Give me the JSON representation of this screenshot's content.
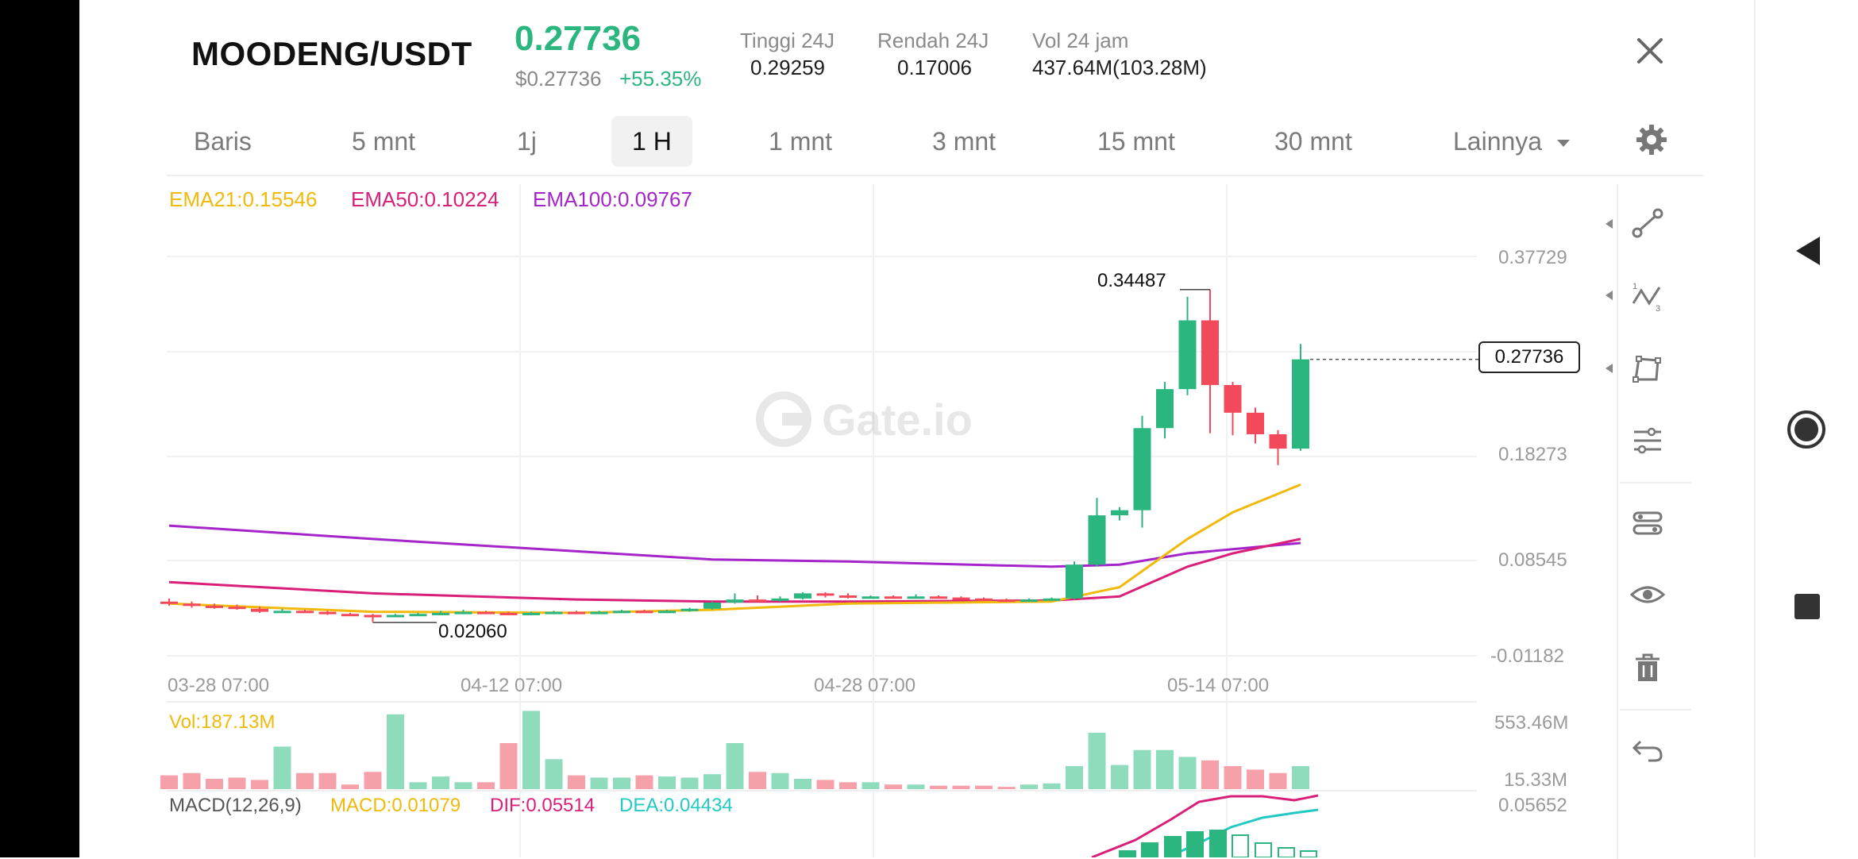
{
  "header": {
    "pair": "MOODENG/USDT",
    "price": "0.27736",
    "price_usd": "$0.27736",
    "change": "+55.35%",
    "stats": [
      {
        "label": "Tinggi 24J",
        "value": "0.29259"
      },
      {
        "label": "Rendah 24J",
        "value": "0.17006"
      },
      {
        "label": "Vol 24 jam",
        "value": "437.64M(103.28M)"
      }
    ]
  },
  "tabs": [
    {
      "label": "Baris"
    },
    {
      "label": "5 mnt"
    },
    {
      "label": "1j"
    },
    {
      "label": "1 H",
      "active": true
    },
    {
      "label": "1 mnt"
    },
    {
      "label": "3 mnt"
    },
    {
      "label": "15 mnt"
    },
    {
      "label": "30 mnt"
    },
    {
      "label": "Lainnya"
    }
  ],
  "ema": {
    "ema21": "EMA21:0.15546",
    "ema50": "EMA50:0.10224",
    "ema100": "EMA100:0.09767"
  },
  "watermark": "Gate.io",
  "chart_data": {
    "type": "candlestick",
    "y_ticks": [
      "0.37729",
      "0.18273",
      "0.08545",
      "-0.01182"
    ],
    "x_ticks": [
      "03-28 07:00",
      "04-12 07:00",
      "04-28 07:00",
      "05-14 07:00"
    ],
    "high_label": "0.34487",
    "low_label": "0.02060",
    "last_price": "0.27736",
    "candles": [
      {
        "o": 0.041,
        "c": 0.039,
        "h": 0.044,
        "l": 0.037
      },
      {
        "o": 0.039,
        "c": 0.037,
        "h": 0.041,
        "l": 0.035
      },
      {
        "o": 0.037,
        "c": 0.036,
        "h": 0.039,
        "l": 0.034
      },
      {
        "o": 0.036,
        "c": 0.034,
        "h": 0.038,
        "l": 0.033
      },
      {
        "o": 0.034,
        "c": 0.031,
        "h": 0.036,
        "l": 0.03
      },
      {
        "o": 0.031,
        "c": 0.032,
        "h": 0.034,
        "l": 0.03
      },
      {
        "o": 0.032,
        "c": 0.031,
        "h": 0.033,
        "l": 0.03
      },
      {
        "o": 0.031,
        "c": 0.029,
        "h": 0.032,
        "l": 0.028
      },
      {
        "o": 0.029,
        "c": 0.028,
        "h": 0.03,
        "l": 0.027
      },
      {
        "o": 0.028,
        "c": 0.027,
        "h": 0.029,
        "l": 0.021
      },
      {
        "o": 0.027,
        "c": 0.028,
        "h": 0.029,
        "l": 0.026
      },
      {
        "o": 0.028,
        "c": 0.029,
        "h": 0.03,
        "l": 0.027
      },
      {
        "o": 0.029,
        "c": 0.03,
        "h": 0.032,
        "l": 0.028
      },
      {
        "o": 0.03,
        "c": 0.031,
        "h": 0.033,
        "l": 0.029
      },
      {
        "o": 0.031,
        "c": 0.03,
        "h": 0.032,
        "l": 0.029
      },
      {
        "o": 0.03,
        "c": 0.029,
        "h": 0.031,
        "l": 0.028
      },
      {
        "o": 0.029,
        "c": 0.03,
        "h": 0.031,
        "l": 0.028
      },
      {
        "o": 0.03,
        "c": 0.031,
        "h": 0.032,
        "l": 0.029
      },
      {
        "o": 0.031,
        "c": 0.03,
        "h": 0.032,
        "l": 0.029
      },
      {
        "o": 0.03,
        "c": 0.031,
        "h": 0.032,
        "l": 0.029
      },
      {
        "o": 0.031,
        "c": 0.032,
        "h": 0.033,
        "l": 0.03
      },
      {
        "o": 0.032,
        "c": 0.031,
        "h": 0.033,
        "l": 0.03
      },
      {
        "o": 0.031,
        "c": 0.032,
        "h": 0.033,
        "l": 0.03
      },
      {
        "o": 0.032,
        "c": 0.034,
        "h": 0.035,
        "l": 0.031
      },
      {
        "o": 0.034,
        "c": 0.04,
        "h": 0.041,
        "l": 0.033
      },
      {
        "o": 0.04,
        "c": 0.043,
        "h": 0.049,
        "l": 0.039
      },
      {
        "o": 0.043,
        "c": 0.042,
        "h": 0.047,
        "l": 0.041
      },
      {
        "o": 0.042,
        "c": 0.044,
        "h": 0.046,
        "l": 0.041
      },
      {
        "o": 0.044,
        "c": 0.049,
        "h": 0.05,
        "l": 0.043
      },
      {
        "o": 0.049,
        "c": 0.047,
        "h": 0.05,
        "l": 0.045
      },
      {
        "o": 0.047,
        "c": 0.045,
        "h": 0.049,
        "l": 0.044
      },
      {
        "o": 0.045,
        "c": 0.046,
        "h": 0.047,
        "l": 0.044
      },
      {
        "o": 0.046,
        "c": 0.045,
        "h": 0.047,
        "l": 0.044
      },
      {
        "o": 0.045,
        "c": 0.046,
        "h": 0.048,
        "l": 0.044
      },
      {
        "o": 0.046,
        "c": 0.045,
        "h": 0.047,
        "l": 0.044
      },
      {
        "o": 0.045,
        "c": 0.044,
        "h": 0.046,
        "l": 0.043
      },
      {
        "o": 0.044,
        "c": 0.043,
        "h": 0.045,
        "l": 0.042
      },
      {
        "o": 0.043,
        "c": 0.042,
        "h": 0.044,
        "l": 0.041
      },
      {
        "o": 0.042,
        "c": 0.043,
        "h": 0.044,
        "l": 0.041
      },
      {
        "o": 0.043,
        "c": 0.044,
        "h": 0.045,
        "l": 0.042
      },
      {
        "o": 0.044,
        "c": 0.077,
        "h": 0.08,
        "l": 0.043
      },
      {
        "o": 0.077,
        "c": 0.125,
        "h": 0.142,
        "l": 0.075
      },
      {
        "o": 0.125,
        "c": 0.13,
        "h": 0.133,
        "l": 0.12
      },
      {
        "o": 0.13,
        "c": 0.21,
        "h": 0.222,
        "l": 0.113
      },
      {
        "o": 0.21,
        "c": 0.248,
        "h": 0.255,
        "l": 0.2
      },
      {
        "o": 0.248,
        "c": 0.315,
        "h": 0.338,
        "l": 0.242
      },
      {
        "o": 0.315,
        "c": 0.252,
        "h": 0.345,
        "l": 0.205
      },
      {
        "o": 0.252,
        "c": 0.225,
        "h": 0.255,
        "l": 0.203
      },
      {
        "o": 0.225,
        "c": 0.204,
        "h": 0.23,
        "l": 0.195
      },
      {
        "o": 0.204,
        "c": 0.19,
        "h": 0.208,
        "l": 0.174
      },
      {
        "o": 0.19,
        "c": 0.277,
        "h": 0.292,
        "l": 0.188
      }
    ],
    "ema21_line": [
      [
        0,
        0.039
      ],
      [
        9,
        0.031
      ],
      [
        18,
        0.03
      ],
      [
        24,
        0.033
      ],
      [
        30,
        0.039
      ],
      [
        39,
        0.041
      ],
      [
        42,
        0.055
      ],
      [
        45,
        0.102
      ],
      [
        47,
        0.128
      ],
      [
        50,
        0.155
      ]
    ],
    "ema50_line": [
      [
        0,
        0.06
      ],
      [
        9,
        0.049
      ],
      [
        18,
        0.043
      ],
      [
        24,
        0.041
      ],
      [
        30,
        0.041
      ],
      [
        39,
        0.042
      ],
      [
        42,
        0.046
      ],
      [
        45,
        0.075
      ],
      [
        47,
        0.088
      ],
      [
        50,
        0.102
      ]
    ],
    "ema100_line": [
      [
        0,
        0.115
      ],
      [
        9,
        0.102
      ],
      [
        18,
        0.09
      ],
      [
        24,
        0.082
      ],
      [
        30,
        0.08
      ],
      [
        39,
        0.075
      ],
      [
        42,
        0.077
      ],
      [
        45,
        0.088
      ],
      [
        47,
        0.092
      ],
      [
        50,
        0.098
      ]
    ],
    "volume": {
      "label": "Vol:187.13M",
      "y_ticks": [
        "553.46M",
        "15.33M"
      ],
      "bars": [
        120,
        140,
        90,
        100,
        80,
        370,
        140,
        140,
        40,
        150,
        650,
        60,
        110,
        60,
        60,
        400,
        680,
        260,
        120,
        100,
        100,
        120,
        110,
        100,
        130,
        400,
        150,
        140,
        90,
        80,
        60,
        60,
        40,
        40,
        30,
        30,
        30,
        20,
        40,
        50,
        200,
        490,
        210,
        340,
        340,
        280,
        250,
        200,
        170,
        140,
        200
      ]
    },
    "macd": {
      "label": "MACD(12,26,9)",
      "macd": "MACD:0.01079",
      "dif": "DIF:0.05514",
      "dea": "DEA:0.04434",
      "y_tick": "0.05652"
    }
  },
  "colors": {
    "up": "#2bb57f",
    "down": "#f2495b",
    "ema21": "#f0b90b",
    "ema50": "#d91f78",
    "ema100": "#a425c9",
    "dea": "#23c9c4"
  }
}
